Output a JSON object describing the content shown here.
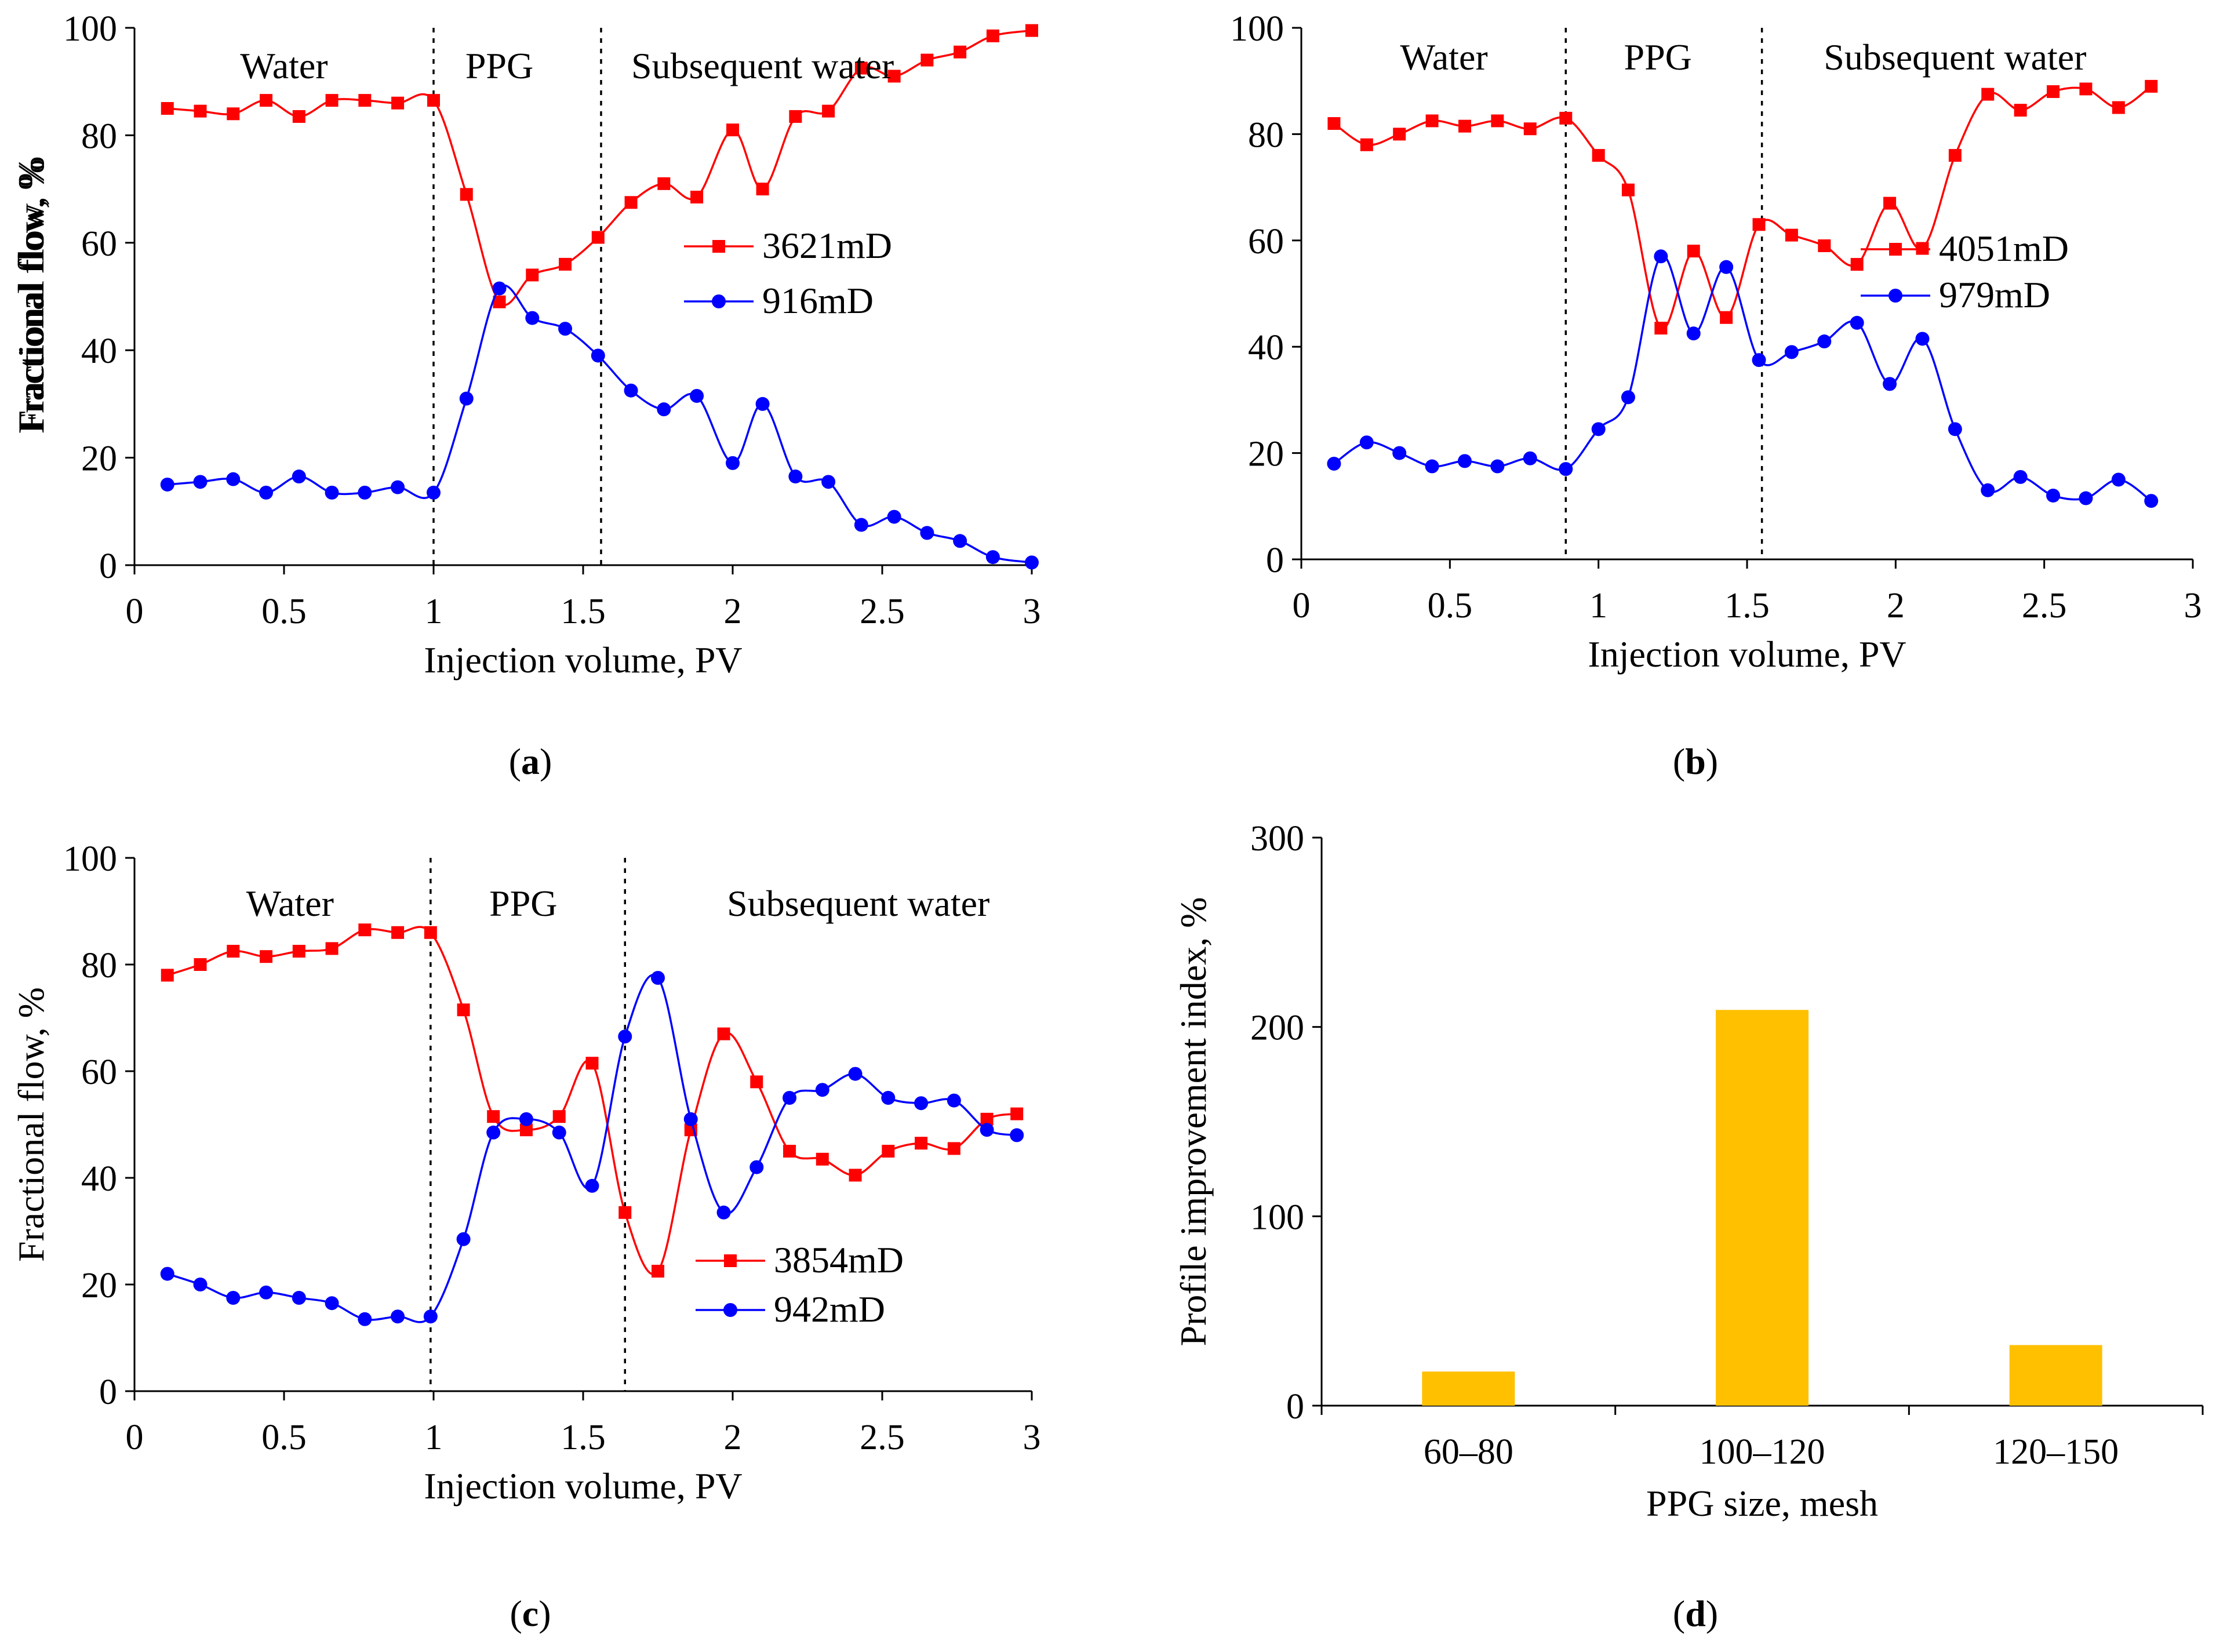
{
  "colors": {
    "red": "#ff0000",
    "blue": "#0000ff",
    "bar": "#ffc000",
    "axis": "#000000"
  },
  "chart_data": [
    {
      "id": "a",
      "caption_letter": "a",
      "type": "line",
      "xlabel": "Injection volume, PV",
      "ylabel": "Fractional flow, %",
      "xlim": [
        0,
        3
      ],
      "ylim": [
        0,
        100
      ],
      "xticks": [
        0,
        0.5,
        1,
        1.5,
        2,
        2.5,
        3
      ],
      "xtick_labels": [
        "0",
        "0.5",
        "1",
        "1.5",
        "2",
        "2.5",
        "3"
      ],
      "yticks": [
        0,
        20,
        40,
        60,
        80,
        100
      ],
      "ytick_labels": [
        "0",
        "20",
        "40",
        "60",
        "80",
        "100"
      ],
      "phase_lines": [
        1.0,
        1.56
      ],
      "phases": [
        {
          "label": "Water",
          "x": 0.5
        },
        {
          "label": "PPG",
          "x": 1.22
        },
        {
          "label": "Subsequent water",
          "x": 2.1
        }
      ],
      "series": [
        {
          "name": "3621mD",
          "color": "#ff0000",
          "marker": "square",
          "x": [
            0.11,
            0.22,
            0.33,
            0.44,
            0.55,
            0.66,
            0.77,
            0.88,
            1.0,
            1.11,
            1.22,
            1.33,
            1.44,
            1.55,
            1.66,
            1.77,
            1.88,
            2.0,
            2.1,
            2.21,
            2.32,
            2.43,
            2.54,
            2.65,
            2.76,
            2.87,
            3.0
          ],
          "y": [
            85,
            84.5,
            84,
            86.5,
            83.5,
            86.5,
            86.5,
            86,
            86.5,
            69,
            49,
            54,
            56,
            61,
            67.5,
            71,
            68.5,
            81,
            70,
            83.5,
            84.5,
            92.5,
            91,
            94,
            95.5,
            98.5,
            99.5
          ]
        },
        {
          "name": "916mD",
          "color": "#0000ff",
          "marker": "circle",
          "x": [
            0.11,
            0.22,
            0.33,
            0.44,
            0.55,
            0.66,
            0.77,
            0.88,
            1.0,
            1.11,
            1.22,
            1.33,
            1.44,
            1.55,
            1.66,
            1.77,
            1.88,
            2.0,
            2.1,
            2.21,
            2.32,
            2.43,
            2.54,
            2.65,
            2.76,
            2.87,
            3.0
          ],
          "y": [
            15,
            15.5,
            16,
            13.5,
            16.5,
            13.5,
            13.5,
            14.5,
            13.5,
            31,
            51.5,
            46,
            44,
            39,
            32.5,
            29,
            31.5,
            19,
            30,
            16.5,
            15.5,
            7.5,
            9,
            6,
            4.5,
            1.5,
            0.5
          ]
        }
      ],
      "legend_position": "right-middle"
    },
    {
      "id": "b",
      "caption_letter": "b",
      "type": "line",
      "xlabel": "Injection volume, PV",
      "ylabel": "Fractional flow, %",
      "xlim": [
        0,
        3
      ],
      "ylim": [
        0,
        100
      ],
      "xticks": [
        0,
        0.5,
        1,
        1.5,
        2,
        2.5,
        3
      ],
      "xtick_labels": [
        "0",
        "0.5",
        "1",
        "1.5",
        "2",
        "2.5",
        "3"
      ],
      "yticks": [
        0,
        20,
        40,
        60,
        80,
        100
      ],
      "ytick_labels": [
        "0",
        "20",
        "40",
        "60",
        "80",
        "100"
      ],
      "phase_lines": [
        0.89,
        1.55
      ],
      "phases": [
        {
          "label": "Water",
          "x": 0.48
        },
        {
          "label": "PPG",
          "x": 1.2
        },
        {
          "label": "Subsequent water",
          "x": 2.2
        }
      ],
      "series": [
        {
          "name": "4051mD",
          "color": "#ff0000",
          "marker": "square",
          "x": [
            0.11,
            0.22,
            0.33,
            0.44,
            0.55,
            0.66,
            0.77,
            0.89,
            1.0,
            1.1,
            1.21,
            1.32,
            1.43,
            1.54,
            1.65,
            1.76,
            1.87,
            1.98,
            2.09,
            2.2,
            2.31,
            2.42,
            2.53,
            2.64,
            2.75,
            2.86
          ],
          "y": [
            82,
            78,
            80,
            82.5,
            81.5,
            82.5,
            81,
            83,
            76,
            69.5,
            43.5,
            58,
            45.5,
            63,
            61,
            59,
            55.5,
            67,
            58.5,
            76,
            87.5,
            84.5,
            88,
            88.5,
            85,
            89
          ]
        },
        {
          "name": "979mD",
          "color": "#0000ff",
          "marker": "circle",
          "x": [
            0.11,
            0.22,
            0.33,
            0.44,
            0.55,
            0.66,
            0.77,
            0.89,
            1.0,
            1.1,
            1.21,
            1.32,
            1.43,
            1.54,
            1.65,
            1.76,
            1.87,
            1.98,
            2.09,
            2.2,
            2.31,
            2.42,
            2.53,
            2.64,
            2.75,
            2.86
          ],
          "y": [
            18,
            22,
            20,
            17.5,
            18.5,
            17.5,
            19,
            17,
            24.5,
            30.5,
            57,
            42.5,
            55,
            37.5,
            39,
            41,
            44.5,
            33,
            41.5,
            24.5,
            13,
            15.5,
            12,
            11.5,
            15,
            11
          ]
        }
      ],
      "legend_position": "right-middle"
    },
    {
      "id": "c",
      "caption_letter": "c",
      "type": "line",
      "xlabel": "Injection volume, PV",
      "ylabel": "Fractional flow, %",
      "xlim": [
        0,
        3
      ],
      "ylim": [
        0,
        100
      ],
      "xticks": [
        0,
        0.5,
        1,
        1.5,
        2,
        2.5,
        3
      ],
      "xtick_labels": [
        "0",
        "0.5",
        "1",
        "1.5",
        "2",
        "2.5",
        "3"
      ],
      "yticks": [
        0,
        20,
        40,
        60,
        80,
        100
      ],
      "ytick_labels": [
        "0",
        "20",
        "40",
        "60",
        "80",
        "100"
      ],
      "phase_lines": [
        0.99,
        1.64
      ],
      "phases": [
        {
          "label": "Water",
          "x": 0.52
        },
        {
          "label": "PPG",
          "x": 1.3
        },
        {
          "label": "Subsequent water",
          "x": 2.42
        }
      ],
      "series": [
        {
          "name": "3854mD",
          "color": "#ff0000",
          "marker": "square",
          "x": [
            0.11,
            0.22,
            0.33,
            0.44,
            0.55,
            0.66,
            0.77,
            0.88,
            0.99,
            1.1,
            1.2,
            1.31,
            1.42,
            1.53,
            1.64,
            1.75,
            1.86,
            1.97,
            2.08,
            2.19,
            2.3,
            2.41,
            2.52,
            2.63,
            2.74,
            2.85,
            2.95
          ],
          "y": [
            78,
            80,
            82.5,
            81.5,
            82.5,
            83,
            86.5,
            86,
            86,
            71.5,
            51.5,
            49,
            51.5,
            61.5,
            33.5,
            22.5,
            49,
            67,
            58,
            45,
            43.5,
            40.5,
            45,
            46.5,
            45.5,
            51,
            52
          ]
        },
        {
          "name": "942mD",
          "color": "#0000ff",
          "marker": "circle",
          "x": [
            0.11,
            0.22,
            0.33,
            0.44,
            0.55,
            0.66,
            0.77,
            0.88,
            0.99,
            1.1,
            1.2,
            1.31,
            1.42,
            1.53,
            1.64,
            1.75,
            1.86,
            1.97,
            2.08,
            2.19,
            2.3,
            2.41,
            2.52,
            2.63,
            2.74,
            2.85,
            2.95
          ],
          "y": [
            22,
            20,
            17.5,
            18.5,
            17.5,
            16.5,
            13.5,
            14,
            14,
            28.5,
            48.5,
            51,
            48.5,
            38.5,
            66.5,
            77.5,
            51,
            33.5,
            42,
            55,
            56.5,
            59.5,
            55,
            54,
            54.5,
            49,
            48
          ]
        }
      ],
      "legend_position": "right-bottom"
    },
    {
      "id": "d",
      "caption_letter": "d",
      "type": "bar",
      "xlabel": "PPG size, mesh",
      "ylabel": "Profile improvement index, %",
      "ylim": [
        0,
        300
      ],
      "yticks": [
        0,
        100,
        200,
        300
      ],
      "ytick_labels": [
        "0",
        "100",
        "200",
        "300"
      ],
      "categories": [
        "60–80",
        "100–120",
        "120–150"
      ],
      "values": [
        18,
        209,
        32
      ],
      "color": "#ffc000"
    }
  ]
}
